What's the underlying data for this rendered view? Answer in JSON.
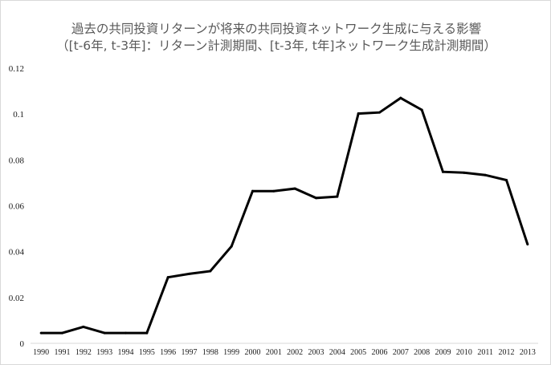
{
  "chart_data": {
    "type": "line",
    "title": "過去の共同投資リターンが将来の共同投資ネットワーク生成に与える影響",
    "subtitle": "（[t-6年, t-3年]：リターン計測期間、[t-3年, t年]ネットワーク生成計測期間）",
    "xlabel": "",
    "ylabel": "",
    "categories": [
      "1990",
      "1991",
      "1992",
      "1993",
      "1994",
      "1995",
      "1996",
      "1997",
      "1998",
      "1999",
      "2000",
      "2001",
      "2002",
      "2003",
      "2004",
      "2005",
      "2006",
      "2007",
      "2008",
      "2009",
      "2010",
      "2011",
      "2012",
      "2013"
    ],
    "series": [
      {
        "values": [
          0.0045,
          0.0045,
          0.0072,
          0.0045,
          0.0045,
          0.0045,
          0.0288,
          0.0303,
          0.0315,
          0.0423,
          0.0664,
          0.0664,
          0.0675,
          0.0634,
          0.064,
          0.1002,
          0.1007,
          0.107,
          0.1018,
          0.0748,
          0.0744,
          0.0734,
          0.0712,
          0.0432
        ],
        "color": "#000000"
      }
    ],
    "ylim": [
      0,
      0.12
    ],
    "yticks": [
      "0",
      "0.02",
      "0.04",
      "0.06",
      "0.08",
      "0.1",
      "0.12"
    ],
    "grid": false,
    "legend": "none"
  }
}
